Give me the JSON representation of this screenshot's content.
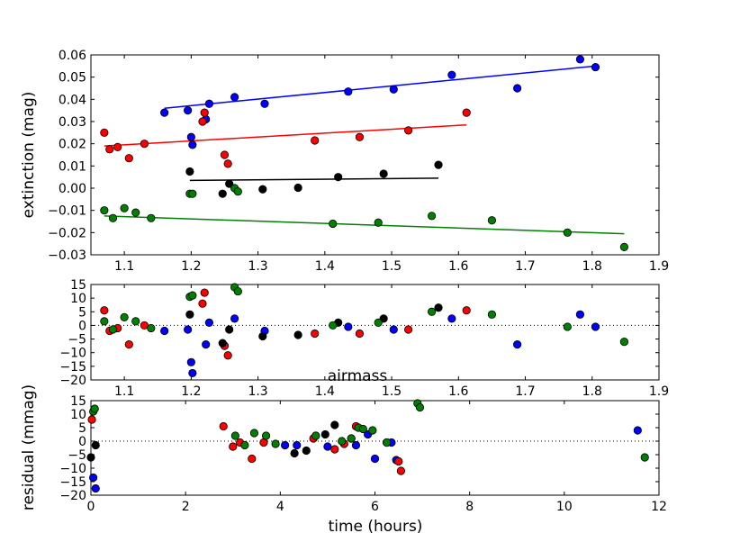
{
  "chart_data": [
    {
      "type": "scatter",
      "id": "top",
      "xlabel": "",
      "ylabel": "extinction (mag)",
      "xlim": [
        1.05,
        1.9
      ],
      "ylim": [
        -0.03,
        0.06
      ],
      "xticks": [
        "1.1",
        "1.2",
        "1.3",
        "1.4",
        "1.5",
        "1.6",
        "1.7",
        "1.8",
        "1.9"
      ],
      "xtick_values": [
        1.1,
        1.2,
        1.3,
        1.4,
        1.5,
        1.6,
        1.7,
        1.8,
        1.9
      ],
      "yticks": [
        "0.06",
        "0.05",
        "0.04",
        "0.03",
        "0.02",
        "0.01",
        "0.00",
        "−0.01",
        "−0.02",
        "−0.03"
      ],
      "ytick_values": [
        0.06,
        0.05,
        0.04,
        0.03,
        0.02,
        0.01,
        0.0,
        -0.01,
        -0.02,
        -0.03
      ],
      "series": [
        {
          "name": "blue",
          "color": "#0000ff",
          "points": [
            [
              1.16,
              0.034
            ],
            [
              1.195,
              0.035
            ],
            [
              1.2,
              0.023
            ],
            [
              1.202,
              0.0195
            ],
            [
              1.222,
              0.031
            ],
            [
              1.227,
              0.038
            ],
            [
              1.265,
              0.041
            ],
            [
              1.31,
              0.038
            ],
            [
              1.435,
              0.0435
            ],
            [
              1.503,
              0.0445
            ],
            [
              1.59,
              0.051
            ],
            [
              1.688,
              0.045
            ],
            [
              1.782,
              0.058
            ],
            [
              1.805,
              0.0545
            ]
          ],
          "fit": [
            [
              1.16,
              0.036
            ],
            [
              1.805,
              0.055
            ]
          ]
        },
        {
          "name": "red",
          "color": "#ff0000",
          "points": [
            [
              1.07,
              0.025
            ],
            [
              1.078,
              0.0175
            ],
            [
              1.09,
              0.0185
            ],
            [
              1.107,
              0.0135
            ],
            [
              1.13,
              0.02
            ],
            [
              1.217,
              0.03
            ],
            [
              1.22,
              0.034
            ],
            [
              1.25,
              0.015
            ],
            [
              1.255,
              0.011
            ],
            [
              1.385,
              0.0215
            ],
            [
              1.452,
              0.023
            ],
            [
              1.525,
              0.026
            ],
            [
              1.612,
              0.034
            ]
          ],
          "fit": [
            [
              1.07,
              0.019
            ],
            [
              1.612,
              0.0285
            ]
          ]
        },
        {
          "name": "black",
          "color": "#000000",
          "points": [
            [
              1.198,
              0.0075
            ],
            [
              1.247,
              -0.0025
            ],
            [
              1.257,
              0.002
            ],
            [
              1.307,
              -0.0005
            ],
            [
              1.36,
              0.0002
            ],
            [
              1.42,
              0.005
            ],
            [
              1.488,
              0.0065
            ],
            [
              1.57,
              0.0105
            ]
          ],
          "fit": [
            [
              1.198,
              0.0035
            ],
            [
              1.57,
              0.0045
            ]
          ]
        },
        {
          "name": "green",
          "color": "#008000",
          "points": [
            [
              1.07,
              -0.01
            ],
            [
              1.083,
              -0.0135
            ],
            [
              1.1,
              -0.009
            ],
            [
              1.117,
              -0.011
            ],
            [
              1.14,
              -0.0135
            ],
            [
              1.198,
              -0.0025
            ],
            [
              1.202,
              -0.0025
            ],
            [
              1.265,
              0.0
            ],
            [
              1.27,
              -0.0015
            ],
            [
              1.412,
              -0.016
            ],
            [
              1.48,
              -0.0155
            ],
            [
              1.56,
              -0.0125
            ],
            [
              1.65,
              -0.0145
            ],
            [
              1.763,
              -0.02
            ],
            [
              1.848,
              -0.0265
            ]
          ],
          "fit": [
            [
              1.07,
              -0.0125
            ],
            [
              1.848,
              -0.0205
            ]
          ]
        }
      ]
    },
    {
      "type": "scatter",
      "id": "middle",
      "xlabel": "airmass",
      "ylabel": "",
      "xlim": [
        1.05,
        1.9
      ],
      "ylim": [
        -20,
        15
      ],
      "xticks": [
        "1.1",
        "1.2",
        "1.3",
        "1.4",
        "1.5",
        "1.6",
        "1.7",
        "1.8",
        "1.9"
      ],
      "xtick_values": [
        1.1,
        1.2,
        1.3,
        1.4,
        1.5,
        1.6,
        1.7,
        1.8,
        1.9
      ],
      "yticks": [
        "15",
        "10",
        "5",
        "0",
        "−5",
        "−10",
        "−15",
        "−20"
      ],
      "ytick_values": [
        15,
        10,
        5,
        0,
        -5,
        -10,
        -15,
        -20
      ],
      "zero_line": true,
      "series": [
        {
          "name": "blue",
          "color": "#0000ff",
          "points": [
            [
              1.16,
              -2
            ],
            [
              1.195,
              -1.5
            ],
            [
              1.2,
              -13.5
            ],
            [
              1.202,
              -17.5
            ],
            [
              1.222,
              -7
            ],
            [
              1.227,
              1
            ],
            [
              1.265,
              2.5
            ],
            [
              1.31,
              -2
            ],
            [
              1.435,
              -0.5
            ],
            [
              1.503,
              -1.5
            ],
            [
              1.59,
              2.5
            ],
            [
              1.688,
              -7
            ],
            [
              1.782,
              4
            ],
            [
              1.805,
              -0.5
            ]
          ]
        },
        {
          "name": "red",
          "color": "#ff0000",
          "points": [
            [
              1.07,
              5.5
            ],
            [
              1.078,
              -2
            ],
            [
              1.09,
              -1
            ],
            [
              1.107,
              -7
            ],
            [
              1.13,
              0
            ],
            [
              1.217,
              8
            ],
            [
              1.22,
              12
            ],
            [
              1.25,
              -7.5
            ],
            [
              1.255,
              -11
            ],
            [
              1.385,
              -3
            ],
            [
              1.452,
              -3
            ],
            [
              1.525,
              -1.5
            ],
            [
              1.612,
              5.5
            ]
          ]
        },
        {
          "name": "black",
          "color": "#000000",
          "points": [
            [
              1.198,
              4
            ],
            [
              1.247,
              -6.5
            ],
            [
              1.257,
              -1.5
            ],
            [
              1.307,
              -4
            ],
            [
              1.36,
              -3.5
            ],
            [
              1.42,
              1
            ],
            [
              1.488,
              2.5
            ],
            [
              1.57,
              6.5
            ]
          ]
        },
        {
          "name": "green",
          "color": "#008000",
          "points": [
            [
              1.07,
              1.5
            ],
            [
              1.083,
              -1.5
            ],
            [
              1.1,
              3
            ],
            [
              1.117,
              1.5
            ],
            [
              1.14,
              -1
            ],
            [
              1.198,
              10.5
            ],
            [
              1.202,
              11
            ],
            [
              1.265,
              14
            ],
            [
              1.27,
              12.5
            ],
            [
              1.412,
              0
            ],
            [
              1.48,
              1
            ],
            [
              1.56,
              5
            ],
            [
              1.65,
              4
            ],
            [
              1.763,
              -0.5
            ],
            [
              1.848,
              -6
            ]
          ]
        }
      ]
    },
    {
      "type": "scatter",
      "id": "bottom",
      "xlabel": "time (hours)",
      "ylabel": "residual (mmag)",
      "xlim": [
        0,
        12
      ],
      "ylim": [
        -20,
        15
      ],
      "xticks": [
        "0",
        "2",
        "4",
        "6",
        "8",
        "10",
        "12"
      ],
      "xtick_values": [
        0,
        2,
        4,
        6,
        8,
        10,
        12
      ],
      "yticks": [
        "15",
        "10",
        "5",
        "0",
        "−5",
        "−10",
        "−15",
        "−20"
      ],
      "ytick_values": [
        15,
        10,
        5,
        0,
        -5,
        -10,
        -15,
        -20
      ],
      "zero_line": true,
      "series": [
        {
          "name": "blue",
          "color": "#0000ff",
          "points": [
            [
              0.05,
              -13.5
            ],
            [
              0.1,
              -17.5
            ],
            [
              4.1,
              -1.5
            ],
            [
              4.35,
              -1.5
            ],
            [
              4.75,
              2
            ],
            [
              5.0,
              -2
            ],
            [
              5.6,
              -1.5
            ],
            [
              5.85,
              2.5
            ],
            [
              6.0,
              -6.5
            ],
            [
              6.35,
              -0.5
            ],
            [
              6.45,
              -7
            ],
            [
              11.55,
              4
            ]
          ]
        },
        {
          "name": "red",
          "color": "#ff0000",
          "points": [
            [
              0.02,
              8
            ],
            [
              2.8,
              5.5
            ],
            [
              3.0,
              -2
            ],
            [
              3.15,
              -0.5
            ],
            [
              3.4,
              -6.5
            ],
            [
              3.65,
              -0.5
            ],
            [
              4.7,
              1
            ],
            [
              5.15,
              -3
            ],
            [
              5.35,
              -1
            ],
            [
              5.6,
              5.5
            ],
            [
              6.5,
              -7.5
            ],
            [
              6.55,
              -11
            ]
          ]
        },
        {
          "name": "black",
          "color": "#000000",
          "points": [
            [
              0.0,
              -6
            ],
            [
              0.1,
              -1.5
            ],
            [
              4.3,
              -4.5
            ],
            [
              4.55,
              -3.5
            ],
            [
              4.95,
              2.5
            ],
            [
              5.15,
              6
            ],
            [
              5.5,
              1
            ],
            [
              6.25,
              -0.5
            ]
          ]
        },
        {
          "name": "green",
          "color": "#008000",
          "points": [
            [
              0.05,
              11
            ],
            [
              0.08,
              12
            ],
            [
              3.05,
              2
            ],
            [
              3.25,
              -1.5
            ],
            [
              3.45,
              3
            ],
            [
              3.7,
              2
            ],
            [
              3.9,
              -1
            ],
            [
              4.75,
              2
            ],
            [
              5.3,
              0
            ],
            [
              5.5,
              1
            ],
            [
              5.65,
              5
            ],
            [
              5.75,
              4.5
            ],
            [
              5.95,
              4
            ],
            [
              6.25,
              -0.5
            ],
            [
              6.9,
              14
            ],
            [
              6.95,
              12.5
            ],
            [
              11.7,
              -6
            ]
          ]
        }
      ]
    }
  ]
}
